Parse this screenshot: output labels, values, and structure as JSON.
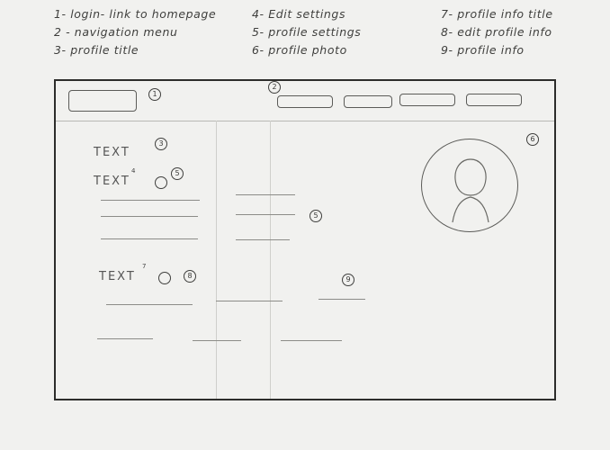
{
  "legend": {
    "items": [
      {
        "label": "1- login- link to homepage"
      },
      {
        "label": "2 - navigation menu"
      },
      {
        "label": "3- profile title"
      },
      {
        "label": "4- Edit settings"
      },
      {
        "label": "5- profile settings"
      },
      {
        "label": "6- profile photo"
      },
      {
        "label": "7- profile info title"
      },
      {
        "label": "8- edit profile info"
      },
      {
        "label": "9- profile info"
      }
    ]
  },
  "wireframe": {
    "markers": {
      "login": "1",
      "nav": "2",
      "profile_title": "3",
      "edit_settings": "4",
      "profile_settings": "5",
      "profile_photo": "6",
      "profile_info_title": "7",
      "edit_profile_info": "8",
      "profile_info": "9"
    },
    "text_placeholder": "TEXT"
  }
}
